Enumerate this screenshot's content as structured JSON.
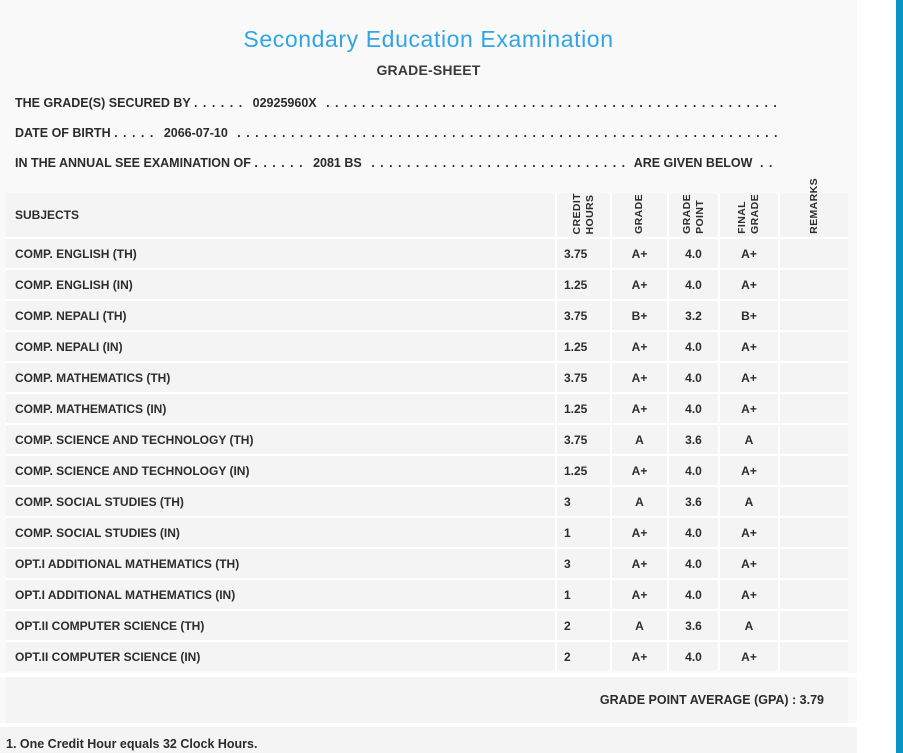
{
  "page": {
    "title": "Secondary Education Examination",
    "subtitle": "GRADE-SHEET",
    "gpa_text": "GRADE POINT AVERAGE (GPA) : 3.79",
    "footnote": "1. One Credit Hour equals 32 Clock Hours."
  },
  "info_lines": {
    "grades_secured": {
      "label": "THE GRADE(S) SECURED BY",
      "dots1": ". . . . . .",
      "value": "02925960X",
      "dots2": ". . . . . . . . . . . . . . . . . . . . . . . . . . . . . . . . . . . . . . . . . . . . . . . . . . . . . . . . . . . ."
    },
    "date_of_birth": {
      "label": "DATE OF BIRTH",
      "dots1": ". . . . .",
      "value": "2066-07-10",
      "dots2": ". . . . . . . . . . . . . . . . . . . . . . . . . . . . . . . . . . . . . . . . . . . . . . . . . . . . . . . . . . . . . . . . . . . ."
    },
    "examination": {
      "label": "IN THE ANNUAL SEE EXAMINATION OF",
      "dots1": ". . . . . .",
      "value": "2081 BS",
      "dots2": ". . . . . . . . . . . . . . . . . . . . . . . . . . . . . .",
      "suffix": "ARE GIVEN BELOW",
      "dots3": ". . ."
    }
  },
  "table": {
    "headers": {
      "subjects": "SUBJECTS",
      "credit_hours": "CREDIT\nHOURS",
      "grade": "GRADE",
      "grade_point": "GRADE\nPOINT",
      "final_grade": "FINAL\nGRADE",
      "remarks": "REMARKS"
    },
    "rows": [
      {
        "subject": "COMP. ENGLISH (TH)",
        "credit": "3.75",
        "grade": "A+",
        "point": "4.0",
        "final": "A+",
        "remarks": ""
      },
      {
        "subject": "COMP. ENGLISH (IN)",
        "credit": "1.25",
        "grade": "A+",
        "point": "4.0",
        "final": "A+",
        "remarks": ""
      },
      {
        "subject": "COMP. NEPALI (TH)",
        "credit": "3.75",
        "grade": "B+",
        "point": "3.2",
        "final": "B+",
        "remarks": ""
      },
      {
        "subject": "COMP. NEPALI (IN)",
        "credit": "1.25",
        "grade": "A+",
        "point": "4.0",
        "final": "A+",
        "remarks": ""
      },
      {
        "subject": "COMP. MATHEMATICS (TH)",
        "credit": "3.75",
        "grade": "A+",
        "point": "4.0",
        "final": "A+",
        "remarks": ""
      },
      {
        "subject": "COMP. MATHEMATICS (IN)",
        "credit": "1.25",
        "grade": "A+",
        "point": "4.0",
        "final": "A+",
        "remarks": ""
      },
      {
        "subject": "COMP. SCIENCE AND TECHNOLOGY (TH)",
        "credit": "3.75",
        "grade": "A",
        "point": "3.6",
        "final": "A",
        "remarks": ""
      },
      {
        "subject": "COMP. SCIENCE AND TECHNOLOGY (IN)",
        "credit": "1.25",
        "grade": "A+",
        "point": "4.0",
        "final": "A+",
        "remarks": ""
      },
      {
        "subject": "COMP. SOCIAL STUDIES (TH)",
        "credit": "3",
        "grade": "A",
        "point": "3.6",
        "final": "A",
        "remarks": ""
      },
      {
        "subject": "COMP. SOCIAL STUDIES (IN)",
        "credit": "1",
        "grade": "A+",
        "point": "4.0",
        "final": "A+",
        "remarks": ""
      },
      {
        "subject": "OPT.I ADDITIONAL MATHEMATICS (TH)",
        "credit": "3",
        "grade": "A+",
        "point": "4.0",
        "final": "A+",
        "remarks": ""
      },
      {
        "subject": "OPT.I ADDITIONAL MATHEMATICS (IN)",
        "credit": "1",
        "grade": "A+",
        "point": "4.0",
        "final": "A+",
        "remarks": ""
      },
      {
        "subject": "OPT.II COMPUTER SCIENCE (TH)",
        "credit": "2",
        "grade": "A",
        "point": "3.6",
        "final": "A",
        "remarks": ""
      },
      {
        "subject": "OPT.II COMPUTER SCIENCE (IN)",
        "credit": "2",
        "grade": "A+",
        "point": "4.0",
        "final": "A+",
        "remarks": ""
      }
    ]
  },
  "colors": {
    "title_blue": "#31a5e3",
    "accent_bar": "#0894c6",
    "row_bg": "#f4f4f4",
    "page_bg": "#f9f9f9"
  }
}
